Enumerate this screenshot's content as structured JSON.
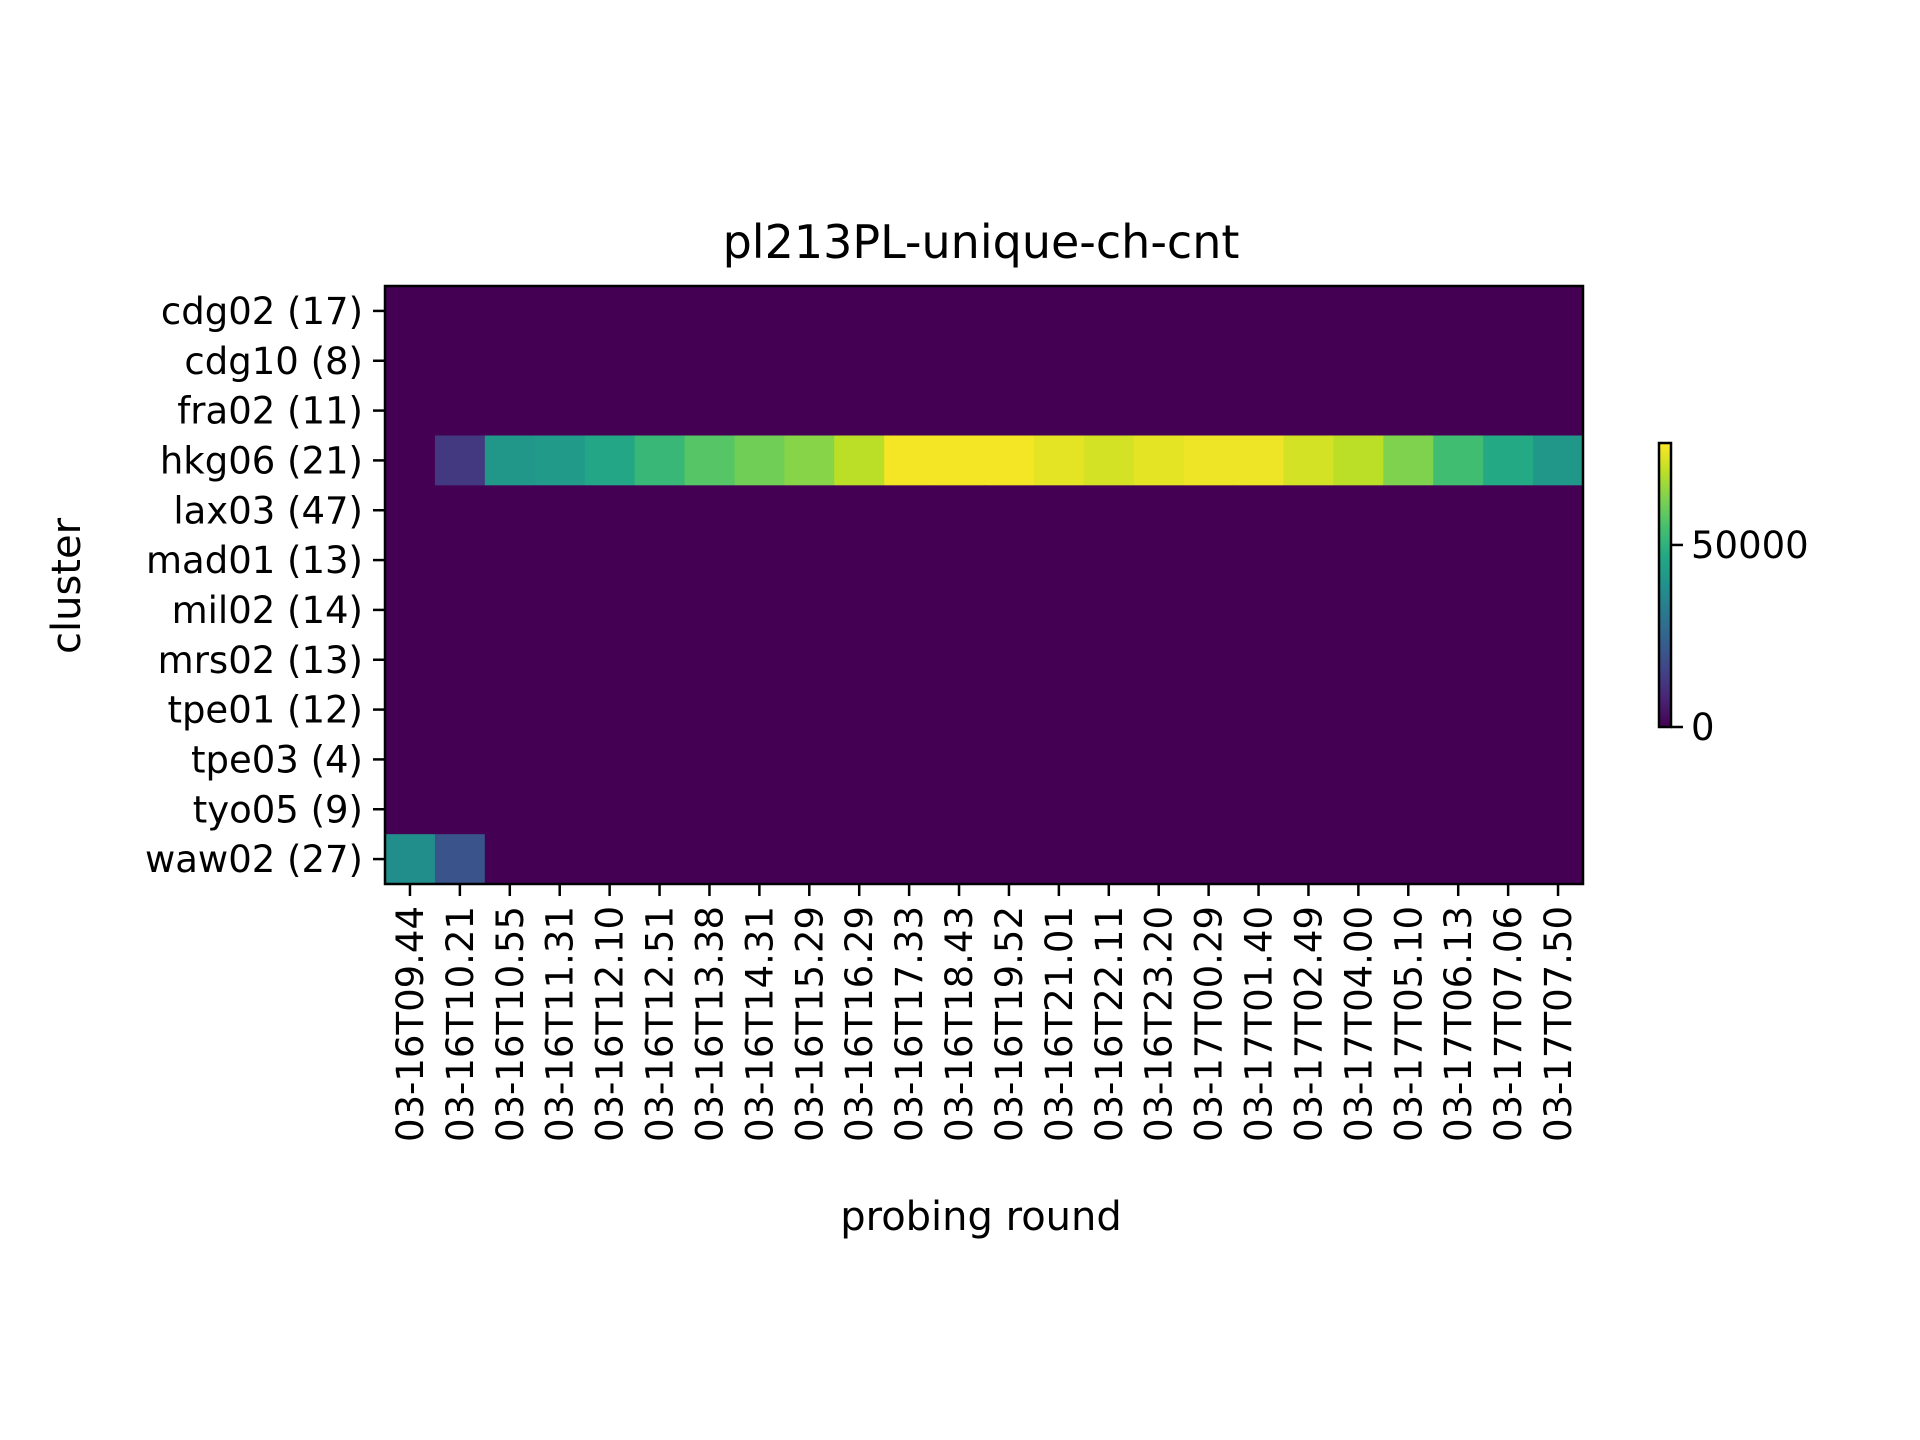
{
  "chart_data": {
    "type": "heatmap",
    "title": "pl213PL-unique-ch-cnt",
    "xlabel": "probing round",
    "ylabel": "cluster",
    "x_categories": [
      "03-16T09.44",
      "03-16T10.21",
      "03-16T10.55",
      "03-16T11.31",
      "03-16T12.10",
      "03-16T12.51",
      "03-16T13.38",
      "03-16T14.31",
      "03-16T15.29",
      "03-16T16.29",
      "03-16T17.33",
      "03-16T18.43",
      "03-16T19.52",
      "03-16T21.01",
      "03-16T22.11",
      "03-16T23.20",
      "03-17T00.29",
      "03-17T01.40",
      "03-17T02.49",
      "03-17T04.00",
      "03-17T05.10",
      "03-17T06.13",
      "03-17T07.06",
      "03-17T07.50"
    ],
    "y_categories": [
      "cdg02 (17)",
      "cdg10 (8)",
      "fra02 (11)",
      "hkg06 (21)",
      "lax03 (47)",
      "mad01 (13)",
      "mil02 (14)",
      "mrs02 (13)",
      "tpe01 (12)",
      "tpe03 (4)",
      "tyo05 (9)",
      "waw02 (27)"
    ],
    "values": [
      [
        0,
        0,
        0,
        0,
        0,
        0,
        0,
        0,
        0,
        0,
        0,
        0,
        0,
        0,
        0,
        0,
        0,
        0,
        0,
        0,
        0,
        0,
        0,
        0
      ],
      [
        0,
        0,
        0,
        0,
        0,
        0,
        0,
        0,
        0,
        0,
        0,
        0,
        0,
        0,
        0,
        0,
        0,
        0,
        0,
        0,
        0,
        0,
        0,
        0
      ],
      [
        0,
        0,
        0,
        0,
        0,
        0,
        0,
        0,
        0,
        0,
        0,
        0,
        0,
        0,
        0,
        0,
        0,
        0,
        0,
        0,
        0,
        0,
        0,
        0
      ],
      [
        0,
        13000,
        41000,
        42000,
        46000,
        52000,
        57000,
        61000,
        64000,
        70000,
        77000,
        77000,
        77000,
        75000,
        73000,
        75000,
        76000,
        76000,
        73000,
        70000,
        63000,
        54000,
        47000,
        41000
      ],
      [
        0,
        0,
        0,
        0,
        0,
        0,
        0,
        0,
        0,
        0,
        0,
        0,
        0,
        0,
        0,
        0,
        0,
        0,
        0,
        0,
        0,
        0,
        0,
        0
      ],
      [
        0,
        0,
        0,
        0,
        0,
        0,
        0,
        0,
        0,
        0,
        0,
        0,
        0,
        0,
        0,
        0,
        0,
        0,
        0,
        0,
        0,
        0,
        0,
        0
      ],
      [
        0,
        0,
        0,
        0,
        0,
        0,
        0,
        0,
        0,
        0,
        0,
        0,
        0,
        0,
        0,
        0,
        0,
        0,
        0,
        0,
        0,
        0,
        0,
        0
      ],
      [
        0,
        0,
        0,
        0,
        0,
        0,
        0,
        0,
        0,
        0,
        0,
        0,
        0,
        0,
        0,
        0,
        0,
        0,
        0,
        0,
        0,
        0,
        0,
        0
      ],
      [
        0,
        0,
        0,
        0,
        0,
        0,
        0,
        0,
        0,
        0,
        0,
        0,
        0,
        0,
        0,
        0,
        0,
        0,
        0,
        0,
        0,
        0,
        0,
        0
      ],
      [
        0,
        0,
        0,
        0,
        0,
        0,
        0,
        0,
        0,
        0,
        0,
        0,
        0,
        0,
        0,
        0,
        0,
        0,
        0,
        0,
        0,
        0,
        0,
        0
      ],
      [
        0,
        0,
        0,
        0,
        0,
        0,
        0,
        0,
        0,
        0,
        0,
        0,
        0,
        0,
        0,
        0,
        0,
        0,
        0,
        0,
        0,
        0,
        0,
        0
      ],
      [
        38000,
        20000,
        0,
        0,
        0,
        0,
        0,
        0,
        0,
        0,
        0,
        0,
        0,
        0,
        0,
        0,
        0,
        0,
        0,
        0,
        0,
        0,
        0,
        0
      ]
    ],
    "colormap": "viridis",
    "colorbar": {
      "range": [
        0,
        78000
      ],
      "ticks": [
        0,
        50000
      ],
      "tick_labels": [
        "0",
        "50000"
      ],
      "placement": "right"
    },
    "grid": false
  }
}
